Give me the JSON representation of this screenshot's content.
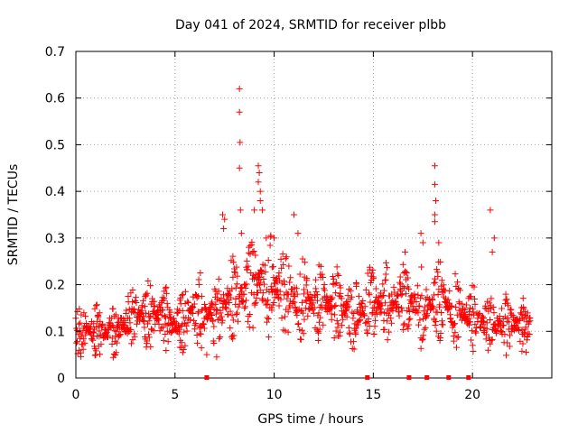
{
  "chart_data": {
    "type": "scatter",
    "title": "Day 041 of 2024, SRMTID for receiver plbb",
    "xlabel": "GPS time / hours",
    "ylabel": "SRMTID / TECUs",
    "xlim": [
      0,
      24
    ],
    "ylim": [
      0,
      0.7
    ],
    "x_ticks": [
      0,
      5,
      10,
      15,
      20
    ],
    "x_tick_labels": [
      "0",
      "5",
      "10",
      "15",
      "20"
    ],
    "y_ticks": [
      0,
      0.1,
      0.2,
      0.3,
      0.4,
      0.5,
      0.6,
      0.7
    ],
    "y_tick_labels": [
      "0",
      "0.1",
      "0.2",
      "0.3",
      "0.4",
      "0.5",
      "0.6",
      "0.7"
    ],
    "grid": true,
    "marker": "+",
    "color": "#ff0000",
    "trend_x": [
      0,
      0.5,
      1,
      1.5,
      2,
      2.5,
      3,
      3.5,
      4,
      4.5,
      5,
      5.5,
      6,
      6.5,
      7,
      7.5,
      8,
      8.5,
      9,
      9.5,
      10,
      10.5,
      11,
      11.5,
      12,
      12.5,
      13,
      13.5,
      14,
      14.5,
      15,
      15.5,
      16,
      16.5,
      17,
      17.5,
      18,
      18.5,
      19,
      19.5,
      20,
      20.5,
      21,
      21.5,
      22,
      22.5,
      22.9
    ],
    "trend_y": [
      0.095,
      0.105,
      0.1,
      0.095,
      0.105,
      0.12,
      0.13,
      0.14,
      0.135,
      0.125,
      0.115,
      0.13,
      0.15,
      0.14,
      0.13,
      0.16,
      0.175,
      0.18,
      0.2,
      0.22,
      0.2,
      0.18,
      0.175,
      0.17,
      0.165,
      0.16,
      0.155,
      0.145,
      0.14,
      0.15,
      0.155,
      0.16,
      0.165,
      0.17,
      0.16,
      0.155,
      0.16,
      0.165,
      0.155,
      0.14,
      0.13,
      0.12,
      0.11,
      0.12,
      0.115,
      0.11,
      0.12
    ],
    "outliers": [
      {
        "x": 8.25,
        "y": 0.62
      },
      {
        "x": 8.25,
        "y": 0.57
      },
      {
        "x": 8.28,
        "y": 0.505
      },
      {
        "x": 8.25,
        "y": 0.45
      },
      {
        "x": 8.3,
        "y": 0.36
      },
      {
        "x": 8.35,
        "y": 0.31
      },
      {
        "x": 7.4,
        "y": 0.35
      },
      {
        "x": 7.5,
        "y": 0.34
      },
      {
        "x": 7.45,
        "y": 0.32
      },
      {
        "x": 9.2,
        "y": 0.455
      },
      {
        "x": 9.25,
        "y": 0.44
      },
      {
        "x": 9.2,
        "y": 0.42
      },
      {
        "x": 9.3,
        "y": 0.4
      },
      {
        "x": 9.3,
        "y": 0.38
      },
      {
        "x": 9.4,
        "y": 0.36
      },
      {
        "x": 9.0,
        "y": 0.36
      },
      {
        "x": 9.6,
        "y": 0.3
      },
      {
        "x": 10.0,
        "y": 0.3
      },
      {
        "x": 11.0,
        "y": 0.35
      },
      {
        "x": 11.2,
        "y": 0.31
      },
      {
        "x": 16.6,
        "y": 0.27
      },
      {
        "x": 17.4,
        "y": 0.31
      },
      {
        "x": 17.5,
        "y": 0.29
      },
      {
        "x": 18.1,
        "y": 0.455
      },
      {
        "x": 18.1,
        "y": 0.415
      },
      {
        "x": 18.15,
        "y": 0.38
      },
      {
        "x": 18.1,
        "y": 0.35
      },
      {
        "x": 18.1,
        "y": 0.335
      },
      {
        "x": 18.3,
        "y": 0.29
      },
      {
        "x": 20.9,
        "y": 0.36
      },
      {
        "x": 21.1,
        "y": 0.3
      },
      {
        "x": 21.0,
        "y": 0.27
      },
      {
        "x": 6.6,
        "y": 0.05
      },
      {
        "x": 7.1,
        "y": 0.045
      }
    ],
    "gap_markers_x": [
      6.6,
      14.7,
      16.8,
      17.7,
      18.8,
      19.8
    ]
  }
}
